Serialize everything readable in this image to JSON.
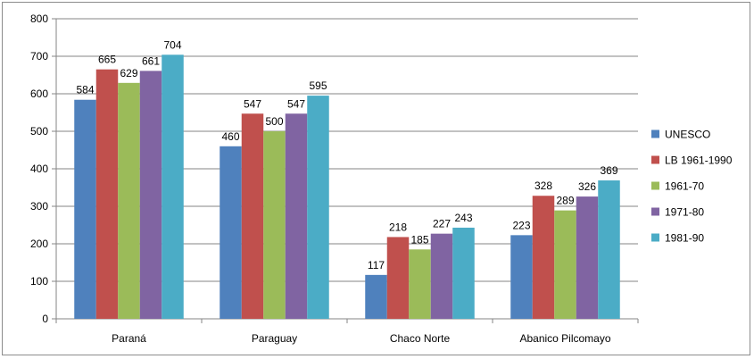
{
  "chart_data": {
    "type": "bar",
    "title": "",
    "xlabel": "",
    "ylabel": "",
    "ylim": [
      0,
      800
    ],
    "yticks": [
      0,
      100,
      200,
      300,
      400,
      500,
      600,
      700,
      800
    ],
    "grid": true,
    "legend_position": "right",
    "categories": [
      "Paraná",
      "Paraguay",
      "Chaco Norte",
      "Abanico Pilcomayo"
    ],
    "series": [
      {
        "name": "UNESCO",
        "color": "#4f81bd",
        "values": [
          584,
          460,
          117,
          223
        ]
      },
      {
        "name": "LB 1961-1990",
        "color": "#c0504d",
        "values": [
          665,
          547,
          218,
          328
        ]
      },
      {
        "name": "1961-70",
        "color": "#9bbb59",
        "values": [
          629,
          500,
          185,
          289
        ]
      },
      {
        "name": "1971-80",
        "color": "#8064a2",
        "values": [
          661,
          547,
          227,
          326
        ]
      },
      {
        "name": "1981-90",
        "color": "#4bacc6",
        "values": [
          704,
          595,
          243,
          369
        ]
      }
    ]
  }
}
